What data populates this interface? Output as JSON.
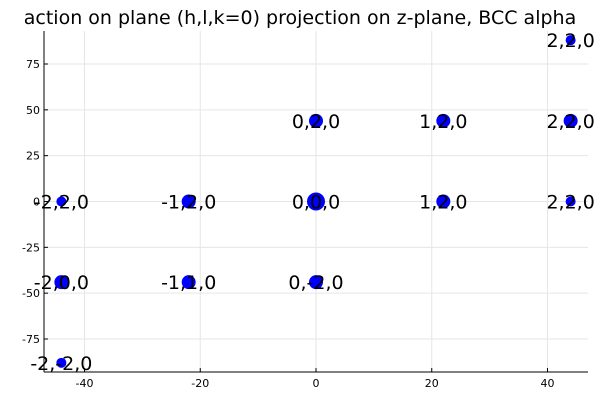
{
  "chart_data": {
    "type": "scatter",
    "title": "action on plane (h,l,k=0) projection on z-plane, BCC alpha",
    "xlim": [
      -47,
      47
    ],
    "ylim": [
      -93,
      93
    ],
    "xticks": [
      -40,
      -20,
      0,
      20,
      40
    ],
    "yticks": [
      -75,
      -50,
      -25,
      0,
      25,
      50,
      75
    ],
    "grid": true,
    "legend": "none",
    "marker_color": "#0000ff",
    "points": [
      {
        "x": 44,
        "y": 88,
        "label": "2,2,0",
        "size": 5
      },
      {
        "x": 0,
        "y": 44,
        "label": "0,2,0",
        "size": 7
      },
      {
        "x": 22,
        "y": 44,
        "label": "1,2,0",
        "size": 7
      },
      {
        "x": 44,
        "y": 44,
        "label": "2,2,0",
        "size": 7
      },
      {
        "x": -44,
        "y": 0,
        "label": "-2,2,0",
        "size": 5
      },
      {
        "x": -22,
        "y": 0,
        "label": "-1,2,0",
        "size": 7
      },
      {
        "x": 0,
        "y": 0,
        "label": "0,0,0",
        "size": 9
      },
      {
        "x": 22,
        "y": 0,
        "label": "1,2,0",
        "size": 7
      },
      {
        "x": 44,
        "y": 0,
        "label": "2,2,0",
        "size": 5
      },
      {
        "x": -44,
        "y": -44,
        "label": "-2,0,0",
        "size": 7
      },
      {
        "x": -22,
        "y": -44,
        "label": "-1,1,0",
        "size": 7
      },
      {
        "x": 0,
        "y": -44,
        "label": "0,-2,0",
        "size": 7
      },
      {
        "x": -44,
        "y": -88,
        "label": "-2,-2,0",
        "size": 5
      }
    ]
  }
}
